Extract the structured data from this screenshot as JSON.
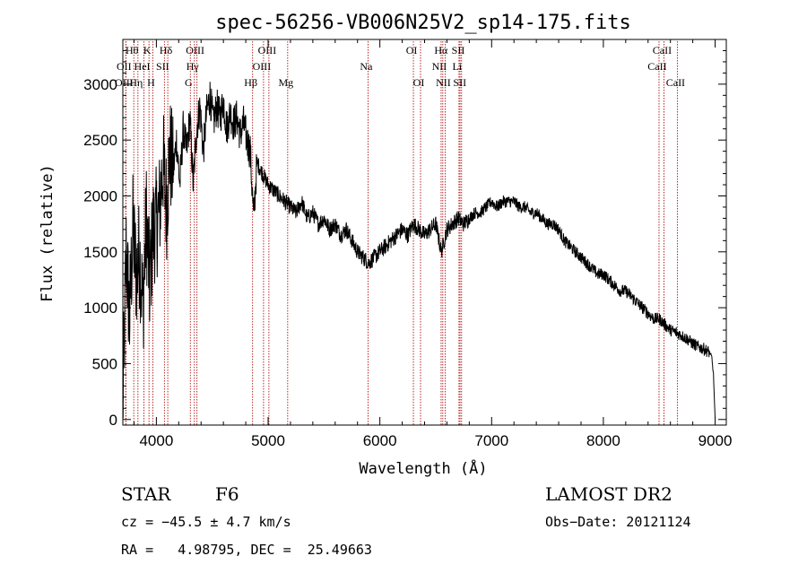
{
  "chart_data": {
    "type": "line",
    "title": "spec-56256-VB006N25V2_sp14-175.fits",
    "xlabel": "Wavelength (Å)",
    "ylabel": "Flux (relative)",
    "xlim": [
      3700,
      9100
    ],
    "ylim": [
      -50,
      3400
    ],
    "grid": false,
    "x_ticks": [
      4000,
      5000,
      6000,
      7000,
      8000,
      9000
    ],
    "y_ticks": [
      0,
      500,
      1000,
      1500,
      2000,
      2500,
      3000
    ],
    "spectrum": {
      "x": [
        3700,
        3730,
        3760,
        3790,
        3820,
        3850,
        3880,
        3910,
        3940,
        3970,
        4000,
        4030,
        4060,
        4090,
        4120,
        4150,
        4180,
        4210,
        4240,
        4270,
        4300,
        4330,
        4360,
        4390,
        4420,
        4450,
        4480,
        4510,
        4540,
        4570,
        4600,
        4630,
        4660,
        4690,
        4720,
        4750,
        4780,
        4810,
        4840,
        4870,
        4900,
        4950,
        5000,
        5050,
        5100,
        5150,
        5200,
        5250,
        5300,
        5350,
        5400,
        5450,
        5500,
        5550,
        5600,
        5650,
        5700,
        5750,
        5800,
        5850,
        5900,
        5950,
        6000,
        6050,
        6100,
        6150,
        6200,
        6250,
        6300,
        6350,
        6400,
        6450,
        6500,
        6550,
        6600,
        6650,
        6700,
        6750,
        6800,
        6850,
        6900,
        6950,
        7000,
        7050,
        7100,
        7150,
        7200,
        7250,
        7300,
        7350,
        7400,
        7450,
        7500,
        7550,
        7600,
        7650,
        7700,
        7750,
        7800,
        7850,
        7900,
        7950,
        8000,
        8050,
        8100,
        8150,
        8200,
        8250,
        8300,
        8350,
        8400,
        8450,
        8500,
        8550,
        8600,
        8650,
        8700,
        8750,
        8800,
        8850,
        8900,
        8950,
        8970,
        8985,
        9000
      ],
      "y": [
        100,
        1500,
        900,
        1700,
        1300,
        1500,
        1000,
        1800,
        1200,
        1700,
        1750,
        1900,
        2300,
        1900,
        2400,
        2200,
        2500,
        2100,
        2600,
        2400,
        2700,
        2100,
        2600,
        2800,
        2400,
        2750,
        2900,
        2650,
        2800,
        2700,
        2850,
        2600,
        2750,
        2650,
        2700,
        2550,
        2650,
        2500,
        2400,
        1800,
        2300,
        2200,
        2100,
        2050,
        2000,
        1950,
        1900,
        1850,
        1950,
        1800,
        1850,
        1750,
        1800,
        1700,
        1750,
        1650,
        1700,
        1600,
        1500,
        1450,
        1400,
        1450,
        1500,
        1550,
        1600,
        1650,
        1700,
        1650,
        1750,
        1700,
        1650,
        1700,
        1750,
        1500,
        1700,
        1750,
        1800,
        1750,
        1800,
        1850,
        1850,
        1900,
        1950,
        1900,
        1950,
        1950,
        1950,
        1900,
        1900,
        1850,
        1850,
        1800,
        1750,
        1750,
        1700,
        1600,
        1550,
        1500,
        1450,
        1400,
        1350,
        1300,
        1300,
        1250,
        1200,
        1150,
        1150,
        1100,
        1050,
        1000,
        950,
        900,
        900,
        850,
        800,
        780,
        750,
        720,
        680,
        650,
        630,
        600,
        560,
        400,
        0
      ]
    },
    "lines": [
      {
        "label": "Hθ",
        "x": 3798,
        "row": 0
      },
      {
        "label": "OII",
        "x": 3727,
        "row": 1
      },
      {
        "label": "OIII",
        "x": 3727,
        "row": 2
      },
      {
        "label": "Hη",
        "x": 3835,
        "row": 2
      },
      {
        "label": "HeI",
        "x": 3889,
        "row": 1
      },
      {
        "label": "K",
        "x": 3934,
        "row": 0
      },
      {
        "label": "SII",
        "x": 4072,
        "row": 1
      },
      {
        "label": "H",
        "x": 3968,
        "row": 2
      },
      {
        "label": "Hδ",
        "x": 4102,
        "row": 0
      },
      {
        "label": "OIII",
        "x": 4363,
        "row": 0
      },
      {
        "label": "Hγ",
        "x": 4340,
        "row": 1
      },
      {
        "label": "G",
        "x": 4304,
        "row": 2
      },
      {
        "label": "Hβ",
        "x": 4861,
        "row": 2
      },
      {
        "label": "OIII",
        "x": 5007,
        "row": 0
      },
      {
        "label": "OIII",
        "x": 4959,
        "row": 1
      },
      {
        "label": "Mg",
        "x": 5175,
        "row": 2
      },
      {
        "label": "Na",
        "x": 5894,
        "row": 1
      },
      {
        "label": "OI",
        "x": 6300,
        "row": 0
      },
      {
        "label": "OI",
        "x": 6364,
        "row": 2
      },
      {
        "label": "Hα",
        "x": 6563,
        "row": 0
      },
      {
        "label": "NII",
        "x": 6548,
        "row": 1
      },
      {
        "label": "NII",
        "x": 6584,
        "row": 2
      },
      {
        "label": "SII",
        "x": 6717,
        "row": 0
      },
      {
        "label": "Li",
        "x": 6708,
        "row": 1
      },
      {
        "label": "SII",
        "x": 6731,
        "row": 2
      },
      {
        "label": "CaII",
        "x": 8542,
        "row": 0
      },
      {
        "label": "CaII",
        "x": 8498,
        "row": 1
      },
      {
        "label": "CaII",
        "x": 8662,
        "row": 2
      }
    ]
  },
  "info": {
    "class": "STAR",
    "subclass": "F6",
    "survey": "LAMOST DR2",
    "cz": "cz = −45.5 ± 4.7 km/s",
    "obs_date": "Obs−Date: 20121124",
    "radec": "RA =   4.98795, DEC =  25.49663"
  }
}
